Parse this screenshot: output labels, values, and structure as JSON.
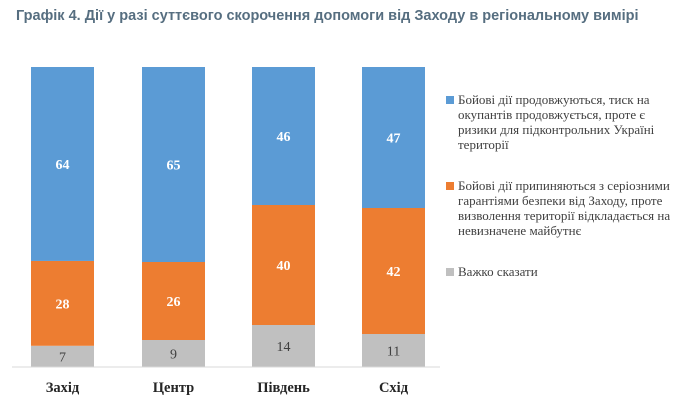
{
  "chart_data": {
    "type": "bar",
    "stacked": true,
    "title": "Графік 4. Дії у разі суттєвого скорочення допомоги від Заходу в регіональному вимірі",
    "categories": [
      "Захід",
      "Центр",
      "Південь",
      "Схід"
    ],
    "series": [
      {
        "name": "Бойові дії продовжуються, тиск на окупантів продовжується, проте є ризики для підконтрольних Україні території",
        "values": [
          64,
          65,
          46,
          47
        ],
        "color": "#5b9bd5",
        "label_color": "#ffffff"
      },
      {
        "name": "Бойові дії припиняються з серіозними гарантіями безпеки від Заходу, проте визволення території відкладається на невизначене майбутнє",
        "values": [
          28,
          26,
          40,
          42
        ],
        "color": "#ed7d31",
        "label_color": "#ffffff"
      },
      {
        "name": "Важко сказати",
        "values": [
          7,
          9,
          14,
          11
        ],
        "color": "#c0c0c0",
        "label_color": "#404040"
      }
    ],
    "legend_position": "right",
    "grid": false,
    "ylim": [
      0,
      100
    ]
  }
}
